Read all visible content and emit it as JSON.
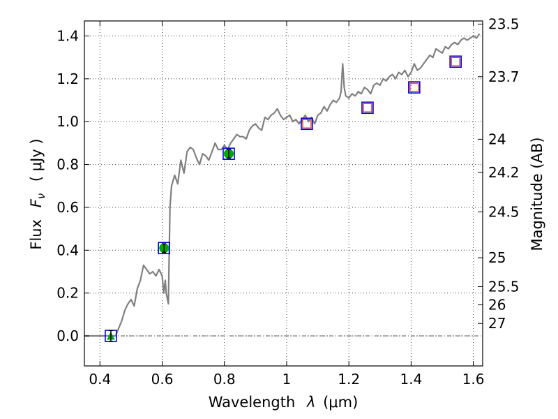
{
  "chart_data": {
    "type": "line",
    "xlabel_text": "Wavelength",
    "xlabel_symbol": "λ",
    "xlabel_unit": "(μm)",
    "ylabel_text": "Flux",
    "ylabel_symbol_main": "F",
    "ylabel_symbol_sub": "ν",
    "ylabel_unit": "( μJy )",
    "ylabel_right": "Magnitude (AB)",
    "xlim": [
      0.35,
      1.63
    ],
    "ylim": [
      -0.14,
      1.47
    ],
    "x_ticks": [
      0.4,
      0.6,
      0.8,
      1.0,
      1.2,
      1.4,
      1.6
    ],
    "x_tick_labels": [
      "0.4",
      "0.6",
      "0.8",
      "1",
      "1.2",
      "1.4",
      "1.6"
    ],
    "y_ticks": [
      0.0,
      0.2,
      0.4,
      0.6,
      0.8,
      1.0,
      1.2,
      1.4
    ],
    "y_tick_labels": [
      "0.0",
      "0.2",
      "0.4",
      "0.6",
      "0.8",
      "1.0",
      "1.2",
      "1.4"
    ],
    "right_ticks": [
      {
        "label": "23.5",
        "flux": 1.455
      },
      {
        "label": "23.7",
        "flux": 1.21
      },
      {
        "label": "24",
        "flux": 0.918
      },
      {
        "label": "24.2",
        "flux": 0.763
      },
      {
        "label": "24.5",
        "flux": 0.579
      },
      {
        "label": "25",
        "flux": 0.365
      },
      {
        "label": "25.5",
        "flux": 0.23
      },
      {
        "label": "26",
        "flux": 0.145
      },
      {
        "label": "27",
        "flux": 0.058
      }
    ],
    "grid": true,
    "colors": {
      "model": "#808080",
      "photometry": "#00aa00",
      "nir": "#dd3333",
      "box": "#0000dd",
      "errorbar": "#000000",
      "zero_line": "#555555"
    },
    "model_spectrum": {
      "x": [
        0.35,
        0.44,
        0.45,
        0.47,
        0.48,
        0.49,
        0.5,
        0.51,
        0.52,
        0.53,
        0.54,
        0.55,
        0.56,
        0.57,
        0.58,
        0.59,
        0.6,
        0.605,
        0.61,
        0.613,
        0.62,
        0.625,
        0.63,
        0.64,
        0.65,
        0.66,
        0.67,
        0.68,
        0.69,
        0.7,
        0.71,
        0.72,
        0.73,
        0.74,
        0.75,
        0.76,
        0.77,
        0.78,
        0.79,
        0.8,
        0.81,
        0.82,
        0.83,
        0.84,
        0.85,
        0.86,
        0.87,
        0.88,
        0.89,
        0.9,
        0.91,
        0.92,
        0.93,
        0.94,
        0.95,
        0.96,
        0.97,
        0.98,
        0.99,
        1.0,
        1.01,
        1.02,
        1.03,
        1.04,
        1.05,
        1.06,
        1.07,
        1.08,
        1.09,
        1.1,
        1.11,
        1.12,
        1.13,
        1.14,
        1.15,
        1.16,
        1.17,
        1.175,
        1.18,
        1.185,
        1.19,
        1.2,
        1.21,
        1.22,
        1.23,
        1.24,
        1.25,
        1.26,
        1.27,
        1.28,
        1.29,
        1.3,
        1.31,
        1.32,
        1.33,
        1.34,
        1.35,
        1.36,
        1.37,
        1.38,
        1.39,
        1.4,
        1.41,
        1.42,
        1.43,
        1.44,
        1.45,
        1.46,
        1.47,
        1.48,
        1.49,
        1.5,
        1.51,
        1.52,
        1.53,
        1.54,
        1.55,
        1.56,
        1.57,
        1.58,
        1.59,
        1.6,
        1.61,
        1.62
      ],
      "y": [
        0.0,
        0.0,
        0.0,
        0.07,
        0.12,
        0.15,
        0.17,
        0.14,
        0.22,
        0.26,
        0.33,
        0.31,
        0.29,
        0.3,
        0.28,
        0.31,
        0.28,
        0.2,
        0.26,
        0.2,
        0.15,
        0.6,
        0.7,
        0.75,
        0.71,
        0.82,
        0.76,
        0.86,
        0.88,
        0.87,
        0.83,
        0.8,
        0.85,
        0.84,
        0.82,
        0.86,
        0.9,
        0.87,
        0.87,
        0.89,
        0.87,
        0.9,
        0.92,
        0.94,
        0.93,
        0.93,
        0.92,
        0.96,
        0.98,
        0.99,
        0.97,
        0.96,
        1.02,
        1.01,
        1.03,
        1.04,
        1.06,
        1.03,
        1.01,
        1.02,
        1.03,
        1.0,
        1.01,
        0.99,
        1.01,
        1.03,
        1.0,
        1.02,
        0.99,
        1.03,
        1.04,
        1.07,
        1.05,
        1.08,
        1.1,
        1.09,
        1.11,
        1.14,
        1.27,
        1.16,
        1.12,
        1.11,
        1.13,
        1.12,
        1.14,
        1.13,
        1.16,
        1.15,
        1.13,
        1.17,
        1.18,
        1.17,
        1.2,
        1.19,
        1.21,
        1.22,
        1.2,
        1.23,
        1.22,
        1.24,
        1.21,
        1.23,
        1.27,
        1.24,
        1.25,
        1.27,
        1.29,
        1.31,
        1.3,
        1.34,
        1.33,
        1.32,
        1.35,
        1.34,
        1.36,
        1.37,
        1.36,
        1.38,
        1.39,
        1.38,
        1.39,
        1.4,
        1.39,
        1.41
      ]
    },
    "photometry": [
      {
        "x": 0.435,
        "y": 0.0,
        "err": 0.025
      },
      {
        "x": 0.606,
        "y": 0.41,
        "err": 0.02
      },
      {
        "x": 0.814,
        "y": 0.85,
        "err": 0.02
      }
    ],
    "nir_points": [
      {
        "x": 1.065,
        "y": 0.99
      },
      {
        "x": 1.26,
        "y": 1.065
      },
      {
        "x": 1.41,
        "y": 1.16
      },
      {
        "x": 1.543,
        "y": 1.28
      }
    ]
  }
}
